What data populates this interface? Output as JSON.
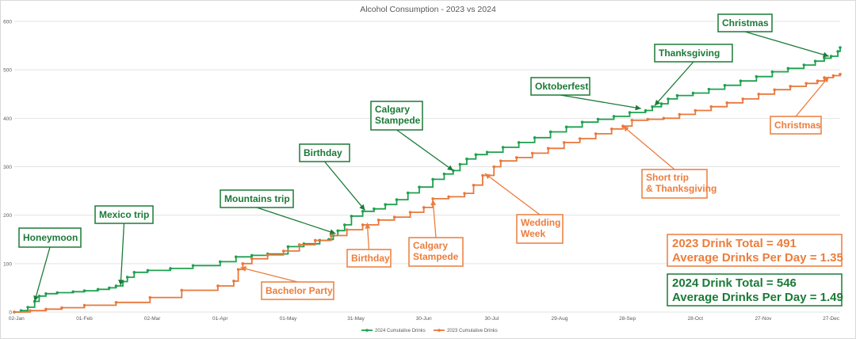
{
  "chart_data": {
    "type": "line",
    "title": "Alcohol Consumption - 2023 vs 2024",
    "ylim": [
      0,
      600
    ],
    "yticks": [
      0,
      100,
      200,
      300,
      400,
      500,
      600
    ],
    "x_range": [
      "2024-01-01",
      "2024-12-31"
    ],
    "x_tick_labels": [
      "02-Jan",
      "01-Feb",
      "02-Mar",
      "01-Apr",
      "01-May",
      "31-May",
      "30-Jun",
      "30-Jul",
      "29-Aug",
      "28-Sep",
      "28-Oct",
      "27-Nov",
      "27-Dec"
    ],
    "x_tick_dates": [
      "2024-01-02",
      "2024-02-01",
      "2024-03-02",
      "2024-04-01",
      "2024-05-01",
      "2024-05-31",
      "2024-06-30",
      "2024-07-30",
      "2024-08-29",
      "2024-09-28",
      "2024-10-28",
      "2024-11-27",
      "2024-12-27"
    ],
    "grid": "horizontal",
    "legend_position": "bottom",
    "series": [
      {
        "name": "2024 Cumulative Drinks",
        "color": "#1fa04f",
        "points": [
          [
            "2024-01-01",
            0
          ],
          [
            "2024-01-04",
            3
          ],
          [
            "2024-01-07",
            10
          ],
          [
            "2024-01-10",
            22
          ],
          [
            "2024-01-12",
            33
          ],
          [
            "2024-01-15",
            38
          ],
          [
            "2024-01-20",
            40
          ],
          [
            "2024-01-27",
            42
          ],
          [
            "2024-02-01",
            44
          ],
          [
            "2024-02-07",
            47
          ],
          [
            "2024-02-12",
            50
          ],
          [
            "2024-02-15",
            54
          ],
          [
            "2024-02-18",
            63
          ],
          [
            "2024-02-20",
            72
          ],
          [
            "2024-02-23",
            82
          ],
          [
            "2024-02-29",
            86
          ],
          [
            "2024-03-10",
            90
          ],
          [
            "2024-03-20",
            96
          ],
          [
            "2024-04-01",
            104
          ],
          [
            "2024-04-08",
            114
          ],
          [
            "2024-04-15",
            117
          ],
          [
            "2024-04-22",
            120
          ],
          [
            "2024-05-01",
            135
          ],
          [
            "2024-05-08",
            141
          ],
          [
            "2024-05-15",
            148
          ],
          [
            "2024-05-19",
            150
          ],
          [
            "2024-05-21",
            158
          ],
          [
            "2024-05-23",
            168
          ],
          [
            "2024-05-26",
            180
          ],
          [
            "2024-05-29",
            198
          ],
          [
            "2024-06-03",
            208
          ],
          [
            "2024-06-08",
            213
          ],
          [
            "2024-06-13",
            222
          ],
          [
            "2024-06-18",
            232
          ],
          [
            "2024-06-23",
            246
          ],
          [
            "2024-06-28",
            258
          ],
          [
            "2024-07-04",
            274
          ],
          [
            "2024-07-09",
            285
          ],
          [
            "2024-07-13",
            292
          ],
          [
            "2024-07-16",
            305
          ],
          [
            "2024-07-19",
            316
          ],
          [
            "2024-07-23",
            325
          ],
          [
            "2024-07-28",
            330
          ],
          [
            "2024-08-04",
            340
          ],
          [
            "2024-08-11",
            350
          ],
          [
            "2024-08-18",
            360
          ],
          [
            "2024-08-25",
            372
          ],
          [
            "2024-09-01",
            382
          ],
          [
            "2024-09-08",
            392
          ],
          [
            "2024-09-15",
            398
          ],
          [
            "2024-09-22",
            404
          ],
          [
            "2024-09-29",
            412
          ],
          [
            "2024-10-06",
            416
          ],
          [
            "2024-10-09",
            424
          ],
          [
            "2024-10-13",
            430
          ],
          [
            "2024-10-16",
            440
          ],
          [
            "2024-10-20",
            447
          ],
          [
            "2024-10-27",
            452
          ],
          [
            "2024-11-03",
            460
          ],
          [
            "2024-11-10",
            468
          ],
          [
            "2024-11-17",
            477
          ],
          [
            "2024-11-24",
            486
          ],
          [
            "2024-12-01",
            496
          ],
          [
            "2024-12-08",
            503
          ],
          [
            "2024-12-15",
            510
          ],
          [
            "2024-12-20",
            518
          ],
          [
            "2024-12-24",
            524
          ],
          [
            "2024-12-27",
            528
          ],
          [
            "2024-12-30",
            538
          ],
          [
            "2024-12-31",
            546
          ]
        ]
      },
      {
        "name": "2023 Cumulative Drinks",
        "color": "#e8783c",
        "points": [
          [
            "2024-01-01",
            0
          ],
          [
            "2024-01-08",
            3
          ],
          [
            "2024-01-15",
            6
          ],
          [
            "2024-01-22",
            9
          ],
          [
            "2024-02-01",
            14
          ],
          [
            "2024-02-15",
            20
          ],
          [
            "2024-03-01",
            30
          ],
          [
            "2024-03-15",
            45
          ],
          [
            "2024-03-31",
            54
          ],
          [
            "2024-04-07",
            64
          ],
          [
            "2024-04-09",
            88
          ],
          [
            "2024-04-11",
            100
          ],
          [
            "2024-04-15",
            110
          ],
          [
            "2024-04-22",
            118
          ],
          [
            "2024-04-29",
            126
          ],
          [
            "2024-05-06",
            139
          ],
          [
            "2024-05-13",
            148
          ],
          [
            "2024-05-20",
            158
          ],
          [
            "2024-05-27",
            170
          ],
          [
            "2024-06-03",
            180
          ],
          [
            "2024-06-10",
            190
          ],
          [
            "2024-06-17",
            196
          ],
          [
            "2024-06-24",
            206
          ],
          [
            "2024-06-30",
            216
          ],
          [
            "2024-07-04",
            234
          ],
          [
            "2024-07-11",
            238
          ],
          [
            "2024-07-18",
            245
          ],
          [
            "2024-07-22",
            262
          ],
          [
            "2024-07-26",
            282
          ],
          [
            "2024-07-31",
            300
          ],
          [
            "2024-08-03",
            312
          ],
          [
            "2024-08-10",
            319
          ],
          [
            "2024-08-17",
            328
          ],
          [
            "2024-08-24",
            338
          ],
          [
            "2024-08-31",
            350
          ],
          [
            "2024-09-07",
            358
          ],
          [
            "2024-09-14",
            368
          ],
          [
            "2024-09-21",
            378
          ],
          [
            "2024-09-26",
            384
          ],
          [
            "2024-09-30",
            396
          ],
          [
            "2024-10-07",
            398
          ],
          [
            "2024-10-14",
            400
          ],
          [
            "2024-10-21",
            408
          ],
          [
            "2024-10-28",
            416
          ],
          [
            "2024-11-04",
            424
          ],
          [
            "2024-11-11",
            432
          ],
          [
            "2024-11-18",
            440
          ],
          [
            "2024-11-25",
            450
          ],
          [
            "2024-12-02",
            459
          ],
          [
            "2024-12-09",
            466
          ],
          [
            "2024-12-16",
            472
          ],
          [
            "2024-12-21",
            477
          ],
          [
            "2024-12-24",
            484
          ],
          [
            "2024-12-28",
            488
          ],
          [
            "2024-12-31",
            491
          ]
        ]
      }
    ],
    "annotations": [
      {
        "id": "honeymoon",
        "series": 0,
        "text": "Honeymoon"
      },
      {
        "id": "mexico",
        "series": 0,
        "text": "Mexico trip"
      },
      {
        "id": "mountains",
        "series": 0,
        "text": "Mountains trip"
      },
      {
        "id": "birthday24",
        "series": 0,
        "text": "Birthday"
      },
      {
        "id": "stampede24",
        "series": 0,
        "text": "Calgary Stampede"
      },
      {
        "id": "oktoberfest",
        "series": 0,
        "text": "Oktoberfest"
      },
      {
        "id": "thanksgiving24",
        "series": 0,
        "text": "Thanksgiving"
      },
      {
        "id": "christmas24",
        "series": 0,
        "text": "Christmas"
      },
      {
        "id": "bachelor",
        "series": 1,
        "text": "Bachelor Party"
      },
      {
        "id": "birthday23",
        "series": 1,
        "text": "Birthday"
      },
      {
        "id": "stampede23",
        "series": 1,
        "text": "Calgary Stampede"
      },
      {
        "id": "wedding",
        "series": 1,
        "text": "Wedding Week"
      },
      {
        "id": "shorttrip",
        "series": 1,
        "text": "Short trip & Thanksgiving"
      },
      {
        "id": "christmas23",
        "series": 1,
        "text": "Christmas"
      }
    ],
    "summary": [
      {
        "series": 1,
        "total_line": "2023 Drink Total = 491",
        "avg_line": "Average Drinks Per Day = 1.35"
      },
      {
        "series": 0,
        "total_line": "2024 Drink Total = 546",
        "avg_line": "Average Drinks Per Day = 1.49"
      }
    ]
  }
}
